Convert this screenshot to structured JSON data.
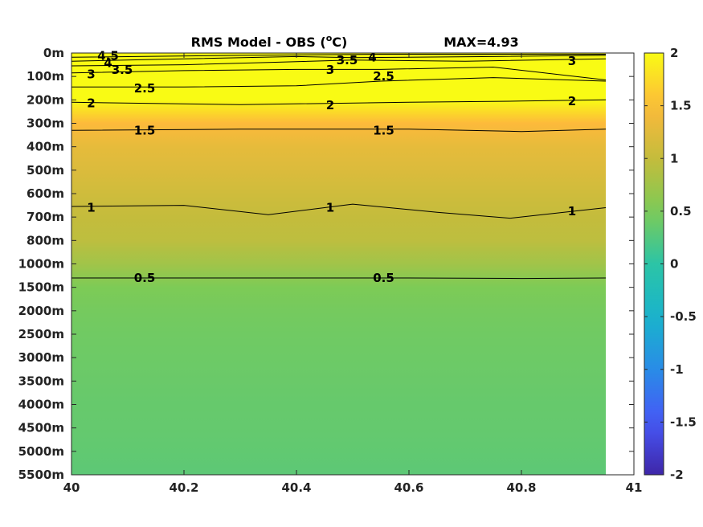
{
  "chart_data": {
    "type": "heatmap",
    "title_parts": [
      "RMS Model - OBS (",
      "o",
      "C)"
    ],
    "max_label": "MAX=4.93",
    "xlabel": "",
    "ylabel": "",
    "x_ticks": [
      "40",
      "40.2",
      "40.4",
      "40.6",
      "40.8",
      "41"
    ],
    "xlim": [
      40,
      41
    ],
    "y_ticks": [
      "0m",
      "100m",
      "200m",
      "300m",
      "400m",
      "500m",
      "600m",
      "700m",
      "800m",
      "1000m",
      "1500m",
      "2000m",
      "2500m",
      "3000m",
      "3500m",
      "4000m",
      "4500m",
      "5000m",
      "5500m"
    ],
    "data_x_extent": [
      40,
      40.95
    ],
    "colorbar": {
      "ticks": [
        "2",
        "1.5",
        "1",
        "0.5",
        "0",
        "-0.5",
        "-1",
        "-1.5",
        "-2"
      ],
      "range": [
        -2,
        2
      ],
      "colormap": "parula"
    },
    "depth_profile": [
      {
        "depth": "0m",
        "value": 4.9
      },
      {
        "depth": "100m",
        "value": 3.0
      },
      {
        "depth": "200m",
        "value": 2.0
      },
      {
        "depth": "300m",
        "value": 1.5
      },
      {
        "depth": "400m",
        "value": 1.3
      },
      {
        "depth": "500m",
        "value": 1.2
      },
      {
        "depth": "600m",
        "value": 1.1
      },
      {
        "depth": "700m",
        "value": 1.0
      },
      {
        "depth": "800m",
        "value": 0.95
      },
      {
        "depth": "1000m",
        "value": 0.75
      },
      {
        "depth": "1500m",
        "value": 0.5
      },
      {
        "depth": "2000m",
        "value": 0.45
      },
      {
        "depth": "2500m",
        "value": 0.42
      },
      {
        "depth": "3000m",
        "value": 0.4
      },
      {
        "depth": "3500m",
        "value": 0.38
      },
      {
        "depth": "4000m",
        "value": 0.36
      },
      {
        "depth": "4500m",
        "value": 0.35
      },
      {
        "depth": "5000m",
        "value": 0.33
      },
      {
        "depth": "5500m",
        "value": 0.3
      }
    ],
    "contours": [
      {
        "level": "4.5",
        "points": [
          [
            40,
            0.18
          ],
          [
            40.3,
            0.1
          ],
          [
            40.55,
            0.05
          ],
          [
            40.95,
            0.05
          ]
        ]
      },
      {
        "level": "4",
        "points": [
          [
            40,
            0.35
          ],
          [
            40.2,
            0.25
          ],
          [
            40.4,
            0.15
          ],
          [
            40.5,
            0.2
          ],
          [
            40.75,
            0.15
          ],
          [
            40.95,
            0.1
          ]
        ]
      },
      {
        "level": "3.5",
        "points": [
          [
            40,
            0.55
          ],
          [
            40.2,
            0.5
          ],
          [
            40.35,
            0.4
          ],
          [
            40.5,
            0.3
          ],
          [
            40.7,
            0.35
          ],
          [
            40.95,
            0.25
          ]
        ]
      },
      {
        "level": "3",
        "points": [
          [
            40,
            0.85
          ],
          [
            40.2,
            0.75
          ],
          [
            40.4,
            0.7
          ],
          [
            40.55,
            0.7
          ],
          [
            40.75,
            0.6
          ],
          [
            40.95,
            1.15
          ]
        ]
      },
      {
        "level": "2.5",
        "points": [
          [
            40,
            1.45
          ],
          [
            40.2,
            1.45
          ],
          [
            40.4,
            1.4
          ],
          [
            40.55,
            1.2
          ],
          [
            40.75,
            1.05
          ],
          [
            40.95,
            1.2
          ]
        ]
      },
      {
        "level": "2",
        "points": [
          [
            40,
            2.1
          ],
          [
            40.3,
            2.2
          ],
          [
            40.6,
            2.1
          ],
          [
            40.8,
            2.05
          ],
          [
            40.95,
            2.0
          ]
        ]
      },
      {
        "level": "1.5",
        "points": [
          [
            40,
            3.3
          ],
          [
            40.3,
            3.25
          ],
          [
            40.6,
            3.25
          ],
          [
            40.8,
            3.35
          ],
          [
            40.95,
            3.25
          ]
        ]
      },
      {
        "level": "1",
        "points": [
          [
            40,
            6.55
          ],
          [
            40.2,
            6.5
          ],
          [
            40.35,
            6.9
          ],
          [
            40.5,
            6.45
          ],
          [
            40.65,
            6.8
          ],
          [
            40.78,
            7.05
          ],
          [
            40.95,
            6.6
          ]
        ]
      },
      {
        "level": "0.5",
        "points": [
          [
            40,
            9.6
          ],
          [
            40.3,
            9.6
          ],
          [
            40.6,
            9.6
          ],
          [
            40.8,
            9.62
          ],
          [
            40.95,
            9.6
          ]
        ]
      }
    ],
    "contour_labels": [
      {
        "text": "4.5",
        "x": 40.065,
        "y": 0.12
      },
      {
        "text": "4",
        "x": 40.065,
        "y": 0.42
      },
      {
        "text": "3",
        "x": 40.035,
        "y": 0.9
      },
      {
        "text": "3.5",
        "x": 40.09,
        "y": 0.72
      },
      {
        "text": "2.5",
        "x": 40.13,
        "y": 1.5
      },
      {
        "text": "2",
        "x": 40.035,
        "y": 2.15
      },
      {
        "text": "1.5",
        "x": 40.13,
        "y": 3.3
      },
      {
        "text": "1",
        "x": 40.035,
        "y": 6.6
      },
      {
        "text": "0.5",
        "x": 40.13,
        "y": 9.6
      },
      {
        "text": "3.5",
        "x": 40.49,
        "y": 0.3
      },
      {
        "text": "4",
        "x": 40.535,
        "y": 0.18
      },
      {
        "text": "3",
        "x": 40.46,
        "y": 0.72
      },
      {
        "text": "2.5",
        "x": 40.555,
        "y": 1.0
      },
      {
        "text": "2",
        "x": 40.46,
        "y": 2.22
      },
      {
        "text": "1.5",
        "x": 40.555,
        "y": 3.3
      },
      {
        "text": "1",
        "x": 40.46,
        "y": 6.6
      },
      {
        "text": "0.5",
        "x": 40.555,
        "y": 9.6
      },
      {
        "text": "3",
        "x": 40.89,
        "y": 0.35
      },
      {
        "text": "2",
        "x": 40.89,
        "y": 2.05
      },
      {
        "text": "1",
        "x": 40.89,
        "y": 6.75
      }
    ]
  }
}
